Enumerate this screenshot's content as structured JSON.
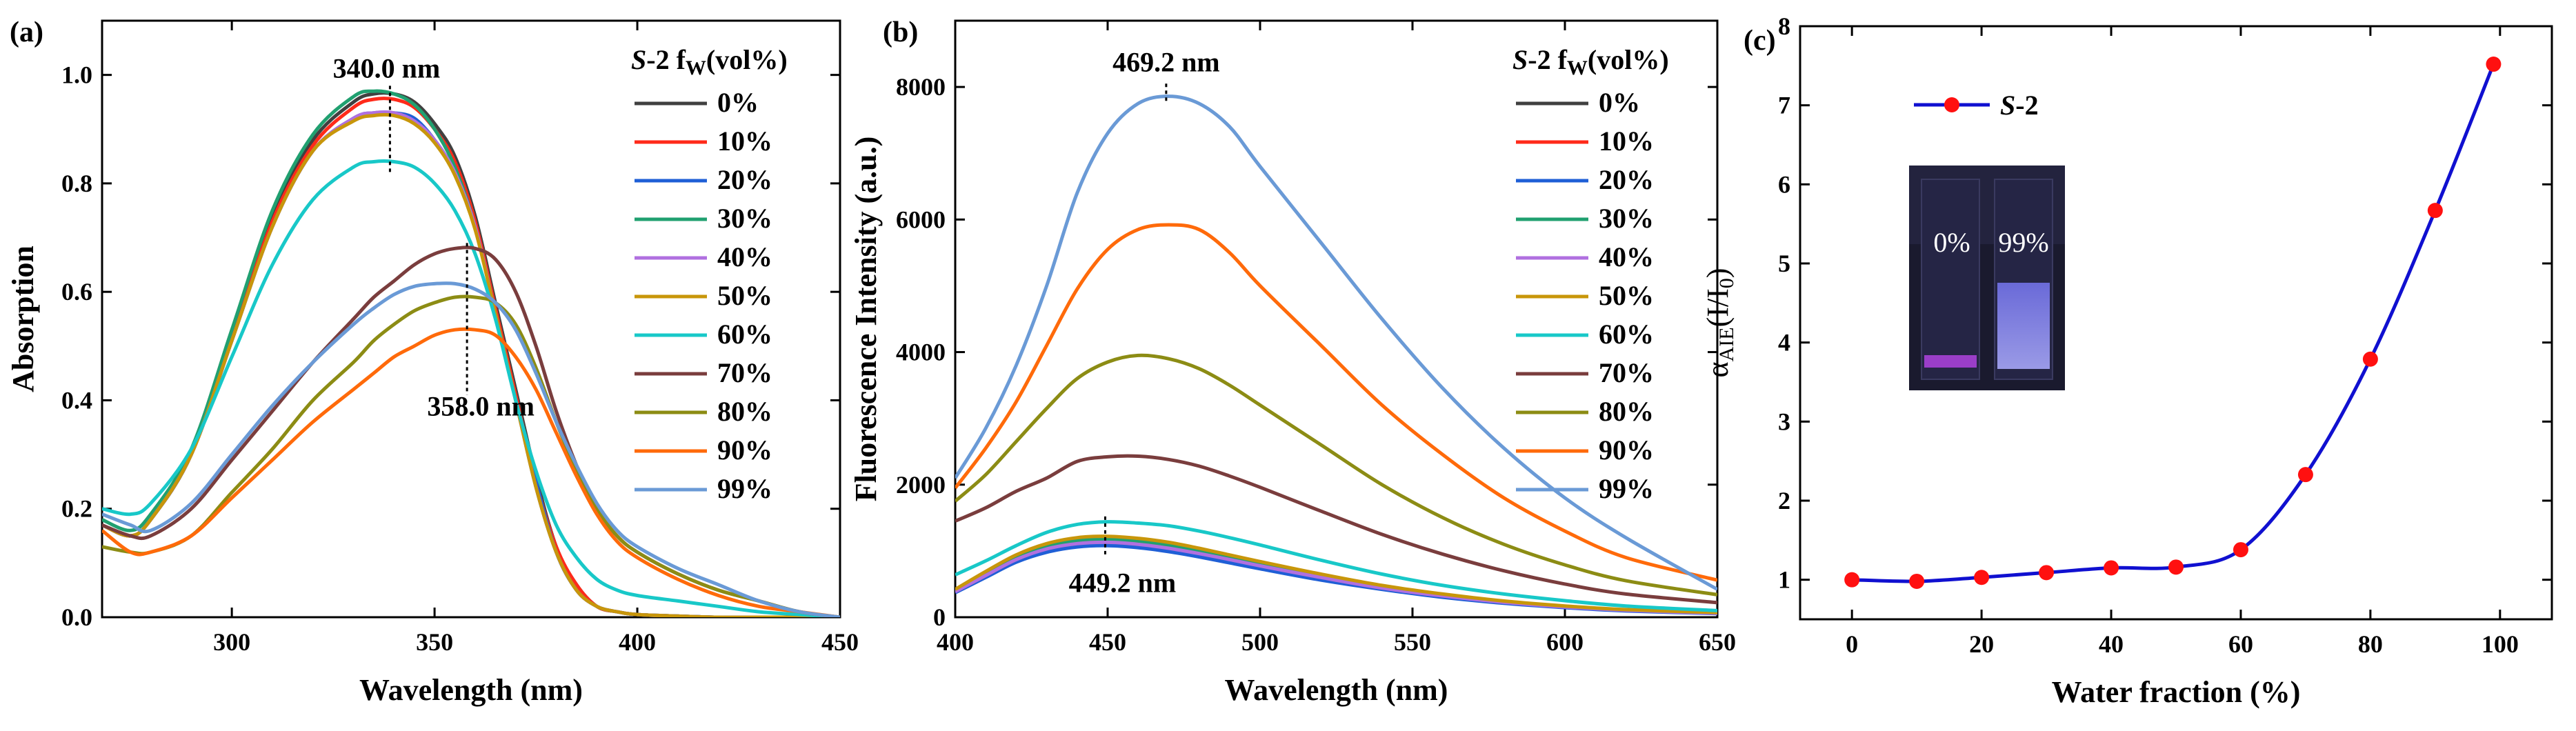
{
  "colors": {
    "0%": "#404040",
    "10%": "#ff2a1a",
    "20%": "#1f5fd6",
    "30%": "#20a070",
    "40%": "#b070e0",
    "50%": "#c8960a",
    "60%": "#18c8c8",
    "70%": "#7a3d3d",
    "80%": "#8c8c14",
    "90%": "#ff6a0a",
    "99%": "#6a9ad6",
    "panel_c_line": "#1010d0",
    "panel_c_marker": "#ff1010"
  },
  "chart_data": [
    {
      "panel": "(a)",
      "type": "line",
      "xlabel": "Wavelength (nm)",
      "ylabel": "Absorption",
      "xlim": [
        268,
        450
      ],
      "ylim": [
        0,
        1.1
      ],
      "xticks": [
        300,
        350,
        400,
        450
      ],
      "yticks": [
        0.0,
        0.2,
        0.4,
        0.6,
        0.8,
        1.0
      ],
      "tick_labels_x": [
        "300",
        "350",
        "400",
        "450"
      ],
      "tick_labels_y": [
        "0.0",
        "0.2",
        "0.4",
        "0.6",
        "0.8",
        "1.0"
      ],
      "legend_title_italic": "S",
      "legend_title_rest": "-2  f",
      "legend_title_sub": "W",
      "legend_title_tail": "(vol%)",
      "legend_position": "top-right",
      "annotations": [
        {
          "text": "340.0 nm",
          "x": 339,
          "y_top": 0.98,
          "y_bottom": 0.82
        },
        {
          "text": "358.0 nm",
          "x": 358,
          "y_top": 0.69,
          "y_bottom": 0.41
        }
      ],
      "x": [
        268,
        275,
        280,
        290,
        300,
        310,
        320,
        330,
        335,
        340,
        345,
        350,
        355,
        360,
        365,
        370,
        375,
        380,
        385,
        390,
        395,
        400,
        410,
        420,
        430,
        440,
        450
      ],
      "series": [
        {
          "name": "0%",
          "values": [
            0.17,
            0.15,
            0.18,
            0.3,
            0.52,
            0.74,
            0.88,
            0.95,
            0.965,
            0.965,
            0.95,
            0.91,
            0.85,
            0.74,
            0.58,
            0.42,
            0.26,
            0.13,
            0.06,
            0.02,
            0.01,
            0.005,
            0.002,
            0.0,
            0.0,
            0.0,
            0.0
          ]
        },
        {
          "name": "10%",
          "values": [
            0.17,
            0.15,
            0.18,
            0.3,
            0.51,
            0.73,
            0.87,
            0.94,
            0.955,
            0.955,
            0.94,
            0.9,
            0.84,
            0.73,
            0.57,
            0.41,
            0.25,
            0.13,
            0.06,
            0.02,
            0.01,
            0.005,
            0.002,
            0.0,
            0.0,
            0.0,
            0.0
          ]
        },
        {
          "name": "20%",
          "values": [
            0.17,
            0.15,
            0.18,
            0.3,
            0.51,
            0.72,
            0.86,
            0.92,
            0.93,
            0.93,
            0.92,
            0.88,
            0.82,
            0.72,
            0.56,
            0.4,
            0.25,
            0.12,
            0.05,
            0.02,
            0.01,
            0.005,
            0.002,
            0.0,
            0.0,
            0.0,
            0.0
          ]
        },
        {
          "name": "30%",
          "values": [
            0.18,
            0.16,
            0.19,
            0.31,
            0.53,
            0.75,
            0.89,
            0.96,
            0.97,
            0.965,
            0.945,
            0.9,
            0.83,
            0.72,
            0.56,
            0.4,
            0.24,
            0.12,
            0.05,
            0.02,
            0.01,
            0.005,
            0.002,
            0.0,
            0.0,
            0.0,
            0.0
          ]
        },
        {
          "name": "40%",
          "values": [
            0.17,
            0.15,
            0.18,
            0.3,
            0.51,
            0.72,
            0.86,
            0.92,
            0.93,
            0.93,
            0.915,
            0.88,
            0.82,
            0.72,
            0.56,
            0.4,
            0.24,
            0.12,
            0.05,
            0.02,
            0.01,
            0.005,
            0.002,
            0.0,
            0.0,
            0.0,
            0.0
          ]
        },
        {
          "name": "50%",
          "values": [
            0.17,
            0.15,
            0.18,
            0.3,
            0.51,
            0.72,
            0.86,
            0.915,
            0.925,
            0.925,
            0.91,
            0.875,
            0.815,
            0.715,
            0.56,
            0.4,
            0.24,
            0.12,
            0.05,
            0.02,
            0.01,
            0.005,
            0.002,
            0.0,
            0.0,
            0.0,
            0.0
          ]
        },
        {
          "name": "60%",
          "values": [
            0.2,
            0.19,
            0.21,
            0.31,
            0.48,
            0.65,
            0.77,
            0.83,
            0.84,
            0.84,
            0.83,
            0.8,
            0.75,
            0.67,
            0.55,
            0.4,
            0.27,
            0.17,
            0.11,
            0.07,
            0.05,
            0.04,
            0.03,
            0.02,
            0.01,
            0.005,
            0.0
          ]
        },
        {
          "name": "70%",
          "values": [
            0.17,
            0.15,
            0.15,
            0.2,
            0.29,
            0.38,
            0.47,
            0.55,
            0.59,
            0.62,
            0.65,
            0.67,
            0.68,
            0.68,
            0.66,
            0.6,
            0.5,
            0.38,
            0.28,
            0.2,
            0.15,
            0.12,
            0.08,
            0.05,
            0.03,
            0.01,
            0.0
          ]
        },
        {
          "name": "80%",
          "values": [
            0.13,
            0.12,
            0.12,
            0.15,
            0.23,
            0.31,
            0.4,
            0.47,
            0.51,
            0.54,
            0.565,
            0.58,
            0.59,
            0.59,
            0.58,
            0.54,
            0.46,
            0.36,
            0.27,
            0.2,
            0.15,
            0.12,
            0.08,
            0.05,
            0.03,
            0.01,
            0.0
          ]
        },
        {
          "name": "90%",
          "values": [
            0.16,
            0.12,
            0.12,
            0.15,
            0.22,
            0.29,
            0.36,
            0.42,
            0.45,
            0.48,
            0.5,
            0.52,
            0.53,
            0.53,
            0.52,
            0.48,
            0.42,
            0.34,
            0.26,
            0.19,
            0.14,
            0.11,
            0.07,
            0.04,
            0.02,
            0.01,
            0.0
          ]
        },
        {
          "name": "99%",
          "values": [
            0.19,
            0.17,
            0.16,
            0.21,
            0.3,
            0.39,
            0.47,
            0.54,
            0.57,
            0.595,
            0.61,
            0.615,
            0.615,
            0.605,
            0.58,
            0.53,
            0.45,
            0.36,
            0.28,
            0.21,
            0.16,
            0.13,
            0.09,
            0.06,
            0.03,
            0.01,
            0.0
          ]
        }
      ]
    },
    {
      "panel": "(b)",
      "type": "line",
      "xlabel": "Wavelength (nm)",
      "ylabel": "Fluorescence Intensity (a.u.)",
      "xlim": [
        400,
        650
      ],
      "ylim": [
        0,
        9000
      ],
      "xticks": [
        400,
        450,
        500,
        550,
        600,
        650
      ],
      "yticks": [
        0,
        2000,
        4000,
        6000,
        8000
      ],
      "tick_labels_x": [
        "400",
        "450",
        "500",
        "550",
        "600",
        "650"
      ],
      "tick_labels_y": [
        "0",
        "2000",
        "4000",
        "6000",
        "8000"
      ],
      "legend_title_italic": "S",
      "legend_title_rest": "-2  f",
      "legend_title_sub": "W",
      "legend_title_tail": "(vol%)",
      "legend_position": "top-right",
      "annotations": [
        {
          "text": "469.2 nm",
          "x": 469.2,
          "y_top": 8050,
          "y_bottom": 7750
        },
        {
          "text": "449.2 nm",
          "x": 449.2,
          "y_top": 1520,
          "y_bottom": 900
        }
      ],
      "x": [
        400,
        410,
        420,
        430,
        440,
        450,
        460,
        470,
        480,
        490,
        500,
        520,
        540,
        560,
        580,
        600,
        620,
        650
      ],
      "series": [
        {
          "name": "0%",
          "values": [
            380,
            620,
            850,
            1000,
            1080,
            1100,
            1070,
            1010,
            930,
            840,
            750,
            580,
            430,
            310,
            220,
            150,
            100,
            60
          ]
        },
        {
          "name": "10%",
          "values": [
            390,
            640,
            880,
            1040,
            1130,
            1150,
            1120,
            1060,
            980,
            890,
            790,
            610,
            450,
            330,
            230,
            160,
            110,
            65
          ]
        },
        {
          "name": "20%",
          "values": [
            370,
            600,
            830,
            980,
            1060,
            1080,
            1050,
            990,
            910,
            820,
            730,
            560,
            420,
            300,
            210,
            145,
            95,
            55
          ]
        },
        {
          "name": "30%",
          "values": [
            400,
            660,
            900,
            1070,
            1160,
            1180,
            1150,
            1090,
            1000,
            910,
            810,
            625,
            460,
            335,
            235,
            165,
            110,
            65
          ]
        },
        {
          "name": "40%",
          "values": [
            385,
            630,
            870,
            1030,
            1110,
            1130,
            1100,
            1040,
            960,
            870,
            775,
            600,
            440,
            320,
            225,
            155,
            105,
            60
          ]
        },
        {
          "name": "50%",
          "values": [
            420,
            690,
            940,
            1110,
            1200,
            1220,
            1190,
            1130,
            1040,
            940,
            840,
            650,
            480,
            350,
            245,
            170,
            115,
            70
          ]
        },
        {
          "name": "60%",
          "values": [
            640,
            850,
            1080,
            1280,
            1400,
            1440,
            1420,
            1380,
            1300,
            1200,
            1090,
            860,
            650,
            480,
            350,
            250,
            170,
            100
          ]
        },
        {
          "name": "70%",
          "values": [
            1450,
            1650,
            1900,
            2100,
            2350,
            2420,
            2430,
            2380,
            2280,
            2130,
            1960,
            1600,
            1250,
            950,
            700,
            500,
            350,
            220
          ]
        },
        {
          "name": "80%",
          "values": [
            1750,
            2150,
            2650,
            3150,
            3600,
            3850,
            3950,
            3900,
            3750,
            3500,
            3200,
            2600,
            2000,
            1500,
            1100,
            790,
            550,
            340
          ]
        },
        {
          "name": "90%",
          "values": [
            1950,
            2550,
            3250,
            4100,
            4950,
            5550,
            5850,
            5920,
            5850,
            5500,
            5000,
            4100,
            3200,
            2450,
            1800,
            1300,
            900,
            560
          ]
        },
        {
          "name": "99%",
          "values": [
            2100,
            2850,
            3800,
            5000,
            6400,
            7300,
            7750,
            7860,
            7750,
            7400,
            6800,
            5650,
            4500,
            3450,
            2550,
            1800,
            1200,
            420
          ]
        }
      ]
    },
    {
      "panel": "(c)",
      "type": "line",
      "xlabel": "Water fraction (%)",
      "ylabel_main": "α",
      "ylabel_sub": "AIE",
      "ylabel_paren_open": "(I/I",
      "ylabel_sub2": "0",
      "ylabel_paren_close": ")",
      "xlim": [
        -8,
        108
      ],
      "ylim": [
        0.5,
        8
      ],
      "xticks": [
        0,
        20,
        40,
        60,
        80,
        100
      ],
      "yticks": [
        1,
        2,
        3,
        4,
        5,
        6,
        7,
        8
      ],
      "tick_labels_x": [
        "0",
        "20",
        "40",
        "60",
        "80",
        "100"
      ],
      "tick_labels_y": [
        "1",
        "2",
        "3",
        "4",
        "5",
        "6",
        "7",
        "8"
      ],
      "legend_position": "top-left",
      "series": [
        {
          "name_italic": "S",
          "name_rest": "-2",
          "x": [
            0,
            10,
            20,
            30,
            40,
            50,
            60,
            70,
            80,
            90,
            99
          ],
          "values": [
            1.0,
            0.98,
            1.03,
            1.09,
            1.15,
            1.16,
            1.38,
            2.33,
            3.79,
            5.67,
            7.52
          ]
        }
      ],
      "inset_labels": [
        "0%",
        "99%"
      ]
    }
  ]
}
